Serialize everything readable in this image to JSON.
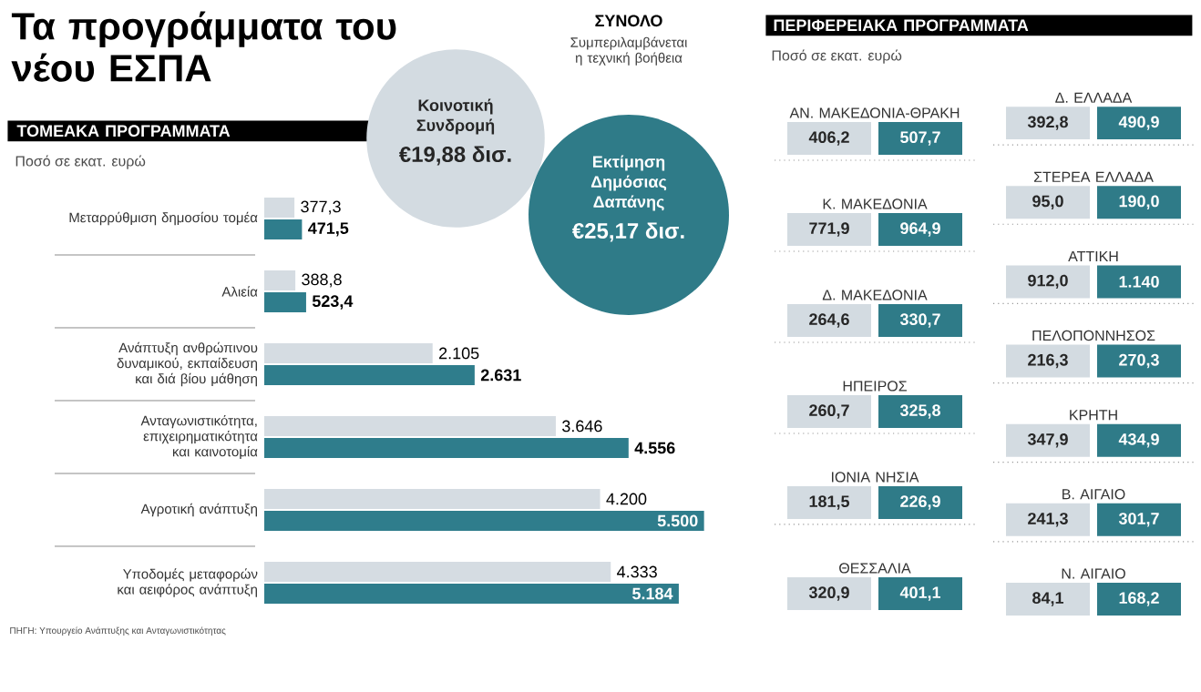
{
  "chart_data": [
    {
      "type": "bar",
      "orientation": "horizontal",
      "title": "Τα προγράμματα του νέου ΕΣΠΑ",
      "subtitle": "ΤΟΜΕΑΚΑ ΠΡΟΓΡΑΜΜΑΤΑ",
      "categories": [
        "Μεταρρύθμιση δημοσίου τομέα",
        "Αλιεία",
        "Ανάπτυξη ανθρώπινου δυναμικού, εκπαίδευση και διά βίου μάθηση",
        "Ανταγωνιστικότητα, επιχειρηματικότητα και καινοτομία",
        "Αγροτική ανάπτυξη",
        "Υποδομές μεταφορών και αειφόρος ανάπτυξη"
      ],
      "series": [
        {
          "color": "#d5dce2",
          "values": [
            377.3,
            388.8,
            2105,
            3646,
            4200,
            4333
          ],
          "value_labels": [
            "377,3",
            "388,8",
            "2.105",
            "3.646",
            "4.200",
            "4.333"
          ]
        },
        {
          "color": "#2f7d8c",
          "values": [
            471.5,
            523.4,
            2631,
            4556,
            5500,
            5184
          ],
          "value_labels": [
            "471,5",
            "523,4",
            "2.631",
            "4.556",
            "5.500",
            "5.184"
          ]
        }
      ],
      "annotations": [
        "Ποσό σε εκατ. ευρώ",
        "ΠΗΓΗ: Υπουργείο Ανάπτυξης και Ανταγωνιστικότητας"
      ]
    },
    {
      "type": "other",
      "title": "ΣΥΝΟΛΟ",
      "subtitle": "Συμπεριλαμβάνεται η τεχνική βοήθεια",
      "categories": [
        "Κοινοτική Συνδρομή",
        "Εκτίμηση Δημόσιας Δαπάνης"
      ],
      "values": [
        19.88,
        25.17
      ],
      "value_labels": [
        "€19,88 δισ.",
        "€25,17 δισ."
      ],
      "colors": [
        "#d3dbe1",
        "#2f7b88"
      ]
    },
    {
      "type": "other",
      "title": "ΠΕΡΙΦΕΡΕΙΑΚΑ ΠΡΟΓΡΑΜΜΑΤΑ",
      "categories": [
        "ΑΝ. ΜΑΚΕΔΟΝΙΑ-ΘΡΑΚΗ",
        "Κ. ΜΑΚΕΔΟΝΙΑ",
        "Δ. ΜΑΚΕΔΟΝΙΑ",
        "ΗΠΕΙΡΟΣ",
        "ΙΟΝΙΑ ΝΗΣΙΑ",
        "ΘΕΣΣΑΛΙΑ",
        "Δ. ΕΛΛΑΔΑ",
        "ΣΤΕΡΕΑ ΕΛΛΑΔΑ",
        "ΑΤΤΙΚΗ",
        "ΠΕΛΟΠΟΝΝΗΣΟΣ",
        "ΚΡΗΤΗ",
        "Β. ΑΙΓΑΙΟ",
        "Ν. ΑΙΓΑΙΟ"
      ],
      "series": [
        {
          "color": "#d3dbe1",
          "values": [
            406.2,
            771.9,
            264.6,
            260.7,
            181.5,
            320.9,
            392.8,
            95.0,
            912.0,
            216.3,
            347.9,
            241.3,
            84.1
          ],
          "value_labels": [
            "406,2",
            "771,9",
            "264,6",
            "260,7",
            "181,5",
            "320,9",
            "392,8",
            "95,0",
            "912,0",
            "216,3",
            "347,9",
            "241,3",
            "84,1"
          ]
        },
        {
          "color": "#2f7b88",
          "values": [
            507.7,
            964.9,
            330.7,
            325.8,
            226.9,
            401.1,
            490.9,
            190.0,
            1140,
            270.3,
            434.9,
            301.7,
            168.2
          ],
          "value_labels": [
            "507,7",
            "964,9",
            "330,7",
            "325,8",
            "226,9",
            "401,1",
            "490,9",
            "190,0",
            "1.140",
            "270,3",
            "434,9",
            "301,7",
            "168,2"
          ]
        }
      ],
      "annotations": [
        "Ποσό σε εκατ. ευρώ"
      ]
    }
  ]
}
